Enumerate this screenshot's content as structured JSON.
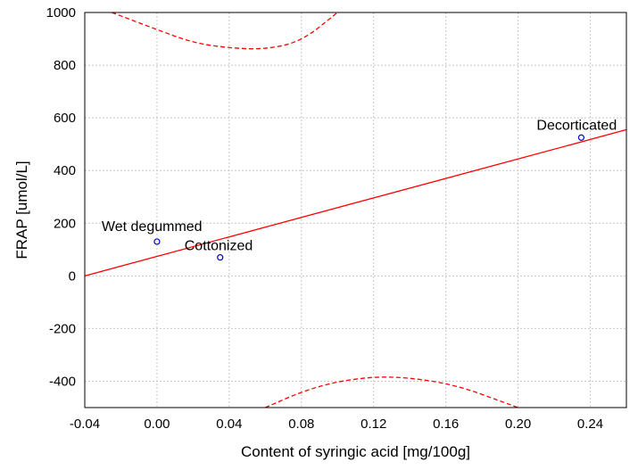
{
  "chart_data": {
    "type": "scatter",
    "title": "",
    "xlabel": "Content of syringic acid [mg/100g]",
    "ylabel": "FRAP [umol/L]",
    "xlim": [
      -0.04,
      0.26
    ],
    "ylim": [
      -500,
      1000
    ],
    "x_ticks": [
      -0.04,
      0.0,
      0.04,
      0.08,
      0.12,
      0.16,
      0.2,
      0.24
    ],
    "x_tick_labels": [
      "-0.04",
      "0.00",
      "0.04",
      "0.08",
      "0.12",
      "0.16",
      "0.20",
      "0.24"
    ],
    "y_ticks": [
      -400,
      -200,
      0,
      200,
      400,
      600,
      800,
      1000
    ],
    "y_tick_labels": [
      "-400",
      "-200",
      "0",
      "200",
      "400",
      "600",
      "800",
      "1000"
    ],
    "grid": true,
    "points": [
      {
        "label": "Wet degummed",
        "x": 0.0,
        "y": 130
      },
      {
        "label": "Cottonized",
        "x": 0.035,
        "y": 70
      },
      {
        "label": "Decorticated",
        "x": 0.235,
        "y": 525
      }
    ],
    "regression_line": {
      "x": [
        -0.04,
        0.26
      ],
      "y": [
        0,
        555
      ]
    },
    "confidence_band": {
      "upper": {
        "x": [
          -0.025,
          0.0,
          0.02,
          0.04,
          0.06,
          0.08,
          0.1
        ],
        "y": [
          1000,
          935,
          885,
          865,
          860,
          890,
          1000
        ]
      },
      "lower": {
        "x": [
          0.06,
          0.08,
          0.1,
          0.125,
          0.15,
          0.17,
          0.19,
          0.2
        ],
        "y": [
          -500,
          -440,
          -400,
          -380,
          -395,
          -425,
          -475,
          -500
        ]
      }
    },
    "colors": {
      "line": "#ff0000",
      "points": "#0000cc",
      "grid": "#c8c8c8",
      "frame": "#000000"
    }
  }
}
